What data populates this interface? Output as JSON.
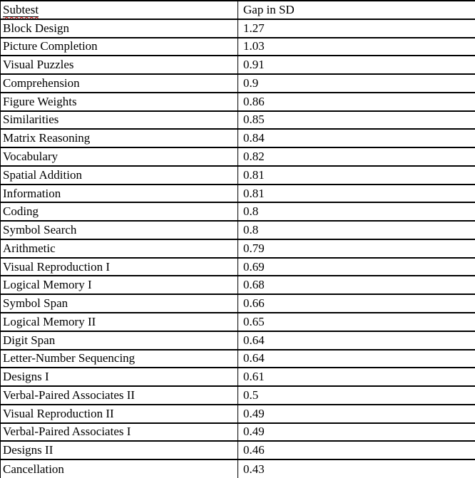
{
  "colors": {
    "background": "#ffffff",
    "border": "#000000",
    "text": "#000000",
    "spellcheck_underline": "#e00000"
  },
  "table": {
    "columns": [
      {
        "key": "subtest",
        "label": "Subtest"
      },
      {
        "key": "gap",
        "label": "Gap in SD"
      }
    ],
    "rows": [
      {
        "subtest": "Block Design",
        "gap": "1.27"
      },
      {
        "subtest": "Picture Completion",
        "gap": "1.03"
      },
      {
        "subtest": "Visual Puzzles",
        "gap": "0.91"
      },
      {
        "subtest": "Comprehension",
        "gap": "0.9"
      },
      {
        "subtest": "Figure Weights",
        "gap": "0.86"
      },
      {
        "subtest": "Similarities",
        "gap": "0.85"
      },
      {
        "subtest": "Matrix Reasoning",
        "gap": "0.84"
      },
      {
        "subtest": "Vocabulary",
        "gap": "0.82"
      },
      {
        "subtest": "Spatial Addition",
        "gap": "0.81"
      },
      {
        "subtest": "Information",
        "gap": "0.81"
      },
      {
        "subtest": "Coding",
        "gap": "0.8"
      },
      {
        "subtest": "Symbol Search",
        "gap": "0.8"
      },
      {
        "subtest": "Arithmetic",
        "gap": "0.79"
      },
      {
        "subtest": "Visual Reproduction I",
        "gap": "0.69"
      },
      {
        "subtest": "Logical Memory I",
        "gap": "0.68"
      },
      {
        "subtest": "Symbol Span",
        "gap": "0.66"
      },
      {
        "subtest": "Logical Memory II",
        "gap": "0.65"
      },
      {
        "subtest": "Digit Span",
        "gap": "0.64"
      },
      {
        "subtest": "Letter-Number Sequencing",
        "gap": "0.64"
      },
      {
        "subtest": "Designs I",
        "gap": "0.61"
      },
      {
        "subtest": "Verbal-Paired Associates II",
        "gap": "0.5"
      },
      {
        "subtest": "Visual Reproduction II",
        "gap": "0.49"
      },
      {
        "subtest": "Verbal-Paired Associates I",
        "gap": "0.49"
      },
      {
        "subtest": "Designs II",
        "gap": "0.46"
      },
      {
        "subtest": "Cancellation",
        "gap": "0.43"
      }
    ]
  }
}
